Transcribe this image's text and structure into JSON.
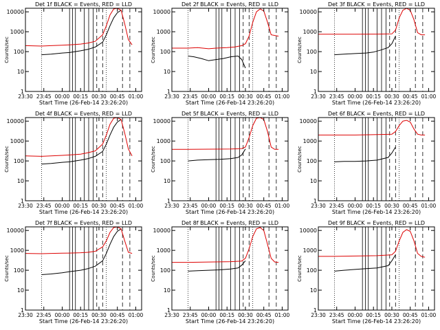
{
  "figure": {
    "start_time_label": "Start Time (26-Feb-14 23:26:20)",
    "colors": {
      "events": "#000000",
      "lld": "#dd0000",
      "axes": "#000000"
    }
  },
  "chart_data": [
    {
      "type": "line",
      "title": "Det 1f BLACK = Events, RED = LLD",
      "xlabel": "Start Time (26-Feb-14 23:26:20)",
      "ylabel": "Counts/sec",
      "x_ticks": [
        "23:30",
        "23:45",
        "00:00",
        "00:15",
        "00:30",
        "00:45",
        "01:00"
      ],
      "y_ticks": [
        "1",
        "10",
        "100",
        "1000",
        "10000"
      ],
      "yscale": "log",
      "ylim": [
        1,
        10000
      ],
      "series": [
        {
          "name": "Events",
          "color": "black",
          "x": [
            23.72,
            23.85,
            24.0,
            24.1,
            24.25,
            24.35,
            24.45,
            24.55,
            24.6,
            24.65,
            24.7,
            24.75,
            24.8
          ],
          "y": [
            70,
            75,
            85,
            90,
            110,
            130,
            170,
            300,
            700,
            2000,
            5000,
            9000,
            12000
          ]
        },
        {
          "name": "LLD",
          "color": "red",
          "x": [
            23.5,
            23.72,
            23.85,
            24.0,
            24.1,
            24.25,
            24.35,
            24.45,
            24.55,
            24.6,
            24.65,
            24.7,
            24.75,
            24.8,
            24.85,
            24.9,
            24.95
          ],
          "y": [
            200,
            190,
            200,
            210,
            220,
            240,
            270,
            330,
            700,
            2000,
            7000,
            14000,
            16000,
            12000,
            2500,
            400,
            220
          ]
        }
      ]
    },
    {
      "type": "line",
      "title": "Det 2f BLACK = Events, RED = LLD",
      "xlabel": "Start Time (26-Feb-14 23:26:20)",
      "ylabel": "Counts/sec",
      "x_ticks": [
        "23:30",
        "23:45",
        "00:00",
        "00:15",
        "00:30",
        "00:45",
        "01:00"
      ],
      "y_ticks": [
        "1",
        "10",
        "100",
        "1000",
        "10000"
      ],
      "yscale": "log",
      "ylim": [
        1,
        10000
      ],
      "series": [
        {
          "name": "Events",
          "color": "black",
          "x": [
            23.72,
            23.8,
            23.9,
            24.0,
            24.1,
            24.2,
            24.3,
            24.4,
            24.45,
            24.5
          ],
          "y": [
            60,
            55,
            45,
            35,
            40,
            45,
            55,
            60,
            40,
            15
          ]
        },
        {
          "name": "LLD",
          "color": "red",
          "x": [
            23.5,
            23.72,
            23.85,
            24.0,
            24.1,
            24.25,
            24.35,
            24.45,
            24.5,
            24.55,
            24.6,
            24.65,
            24.7,
            24.75,
            24.8,
            24.85,
            24.95
          ],
          "y": [
            150,
            150,
            160,
            140,
            150,
            160,
            170,
            200,
            250,
            600,
            3000,
            10000,
            14000,
            11000,
            3000,
            700,
            600
          ]
        }
      ]
    },
    {
      "type": "line",
      "title": "Det 3f BLACK = Events, RED = LLD",
      "xlabel": "Start Time (26-Feb-14 23:26:20)",
      "ylabel": "Counts/sec",
      "x_ticks": [
        "23:30",
        "23:45",
        "00:00",
        "00:15",
        "00:30",
        "00:45",
        "01:00"
      ],
      "y_ticks": [
        "1",
        "10",
        "100",
        "1000",
        "10000"
      ],
      "yscale": "log",
      "ylim": [
        1,
        10000
      ],
      "series": [
        {
          "name": "Events",
          "color": "black",
          "x": [
            23.72,
            23.85,
            24.0,
            24.15,
            24.25,
            24.35,
            24.45,
            24.5,
            24.55
          ],
          "y": [
            70,
            75,
            80,
            85,
            95,
            120,
            160,
            250,
            600
          ]
        },
        {
          "name": "LLD",
          "color": "red",
          "x": [
            23.5,
            23.72,
            24.0,
            24.3,
            24.5,
            24.55,
            24.6,
            24.65,
            24.7,
            24.75,
            24.8,
            24.85,
            24.9,
            24.95
          ],
          "y": [
            750,
            750,
            750,
            760,
            780,
            1200,
            5000,
            12000,
            15000,
            12000,
            4000,
            900,
            700,
            700
          ]
        }
      ]
    },
    {
      "type": "line",
      "title": "Det 4f BLACK = Events, RED = LLD",
      "xlabel": "Start Time (26-Feb-14 23:26:20)",
      "ylabel": "Counts/sec",
      "x_ticks": [
        "23:30",
        "23:45",
        "00:00",
        "00:15",
        "00:30",
        "00:45",
        "01:00"
      ],
      "y_ticks": [
        "1",
        "10",
        "100",
        "1000",
        "10000"
      ],
      "yscale": "log",
      "ylim": [
        1,
        10000
      ],
      "series": [
        {
          "name": "Events",
          "color": "black",
          "x": [
            23.72,
            23.85,
            24.0,
            24.1,
            24.25,
            24.35,
            24.45,
            24.55,
            24.6,
            24.65,
            24.7,
            24.75,
            24.8
          ],
          "y": [
            70,
            75,
            85,
            90,
            110,
            130,
            170,
            300,
            700,
            2000,
            5000,
            9000,
            12000
          ]
        },
        {
          "name": "LLD",
          "color": "red",
          "x": [
            23.5,
            23.72,
            23.85,
            24.0,
            24.1,
            24.25,
            24.35,
            24.45,
            24.55,
            24.6,
            24.65,
            24.7,
            24.75,
            24.8,
            24.85,
            24.9,
            24.95
          ],
          "y": [
            180,
            170,
            180,
            190,
            200,
            220,
            260,
            320,
            700,
            2000,
            7000,
            14000,
            16000,
            12000,
            2500,
            400,
            180
          ]
        }
      ]
    },
    {
      "type": "line",
      "title": "Det 5f BLACK = Events, RED = LLD",
      "xlabel": "Start Time (26-Feb-14 23:26:20)",
      "ylabel": "Counts/sec",
      "x_ticks": [
        "23:30",
        "23:45",
        "00:00",
        "00:15",
        "00:30",
        "00:45",
        "01:00"
      ],
      "y_ticks": [
        "1",
        "10",
        "100",
        "1000",
        "10000"
      ],
      "yscale": "log",
      "ylim": [
        1,
        10000
      ],
      "series": [
        {
          "name": "Events",
          "color": "black",
          "x": [
            23.72,
            23.85,
            24.0,
            24.15,
            24.3,
            24.4,
            24.45,
            24.5
          ],
          "y": [
            100,
            110,
            115,
            120,
            130,
            150,
            200,
            400
          ]
        },
        {
          "name": "LLD",
          "color": "red",
          "x": [
            23.5,
            23.72,
            24.0,
            24.3,
            24.45,
            24.5,
            24.55,
            24.6,
            24.65,
            24.7,
            24.75,
            24.8,
            24.85,
            24.9,
            24.95
          ],
          "y": [
            380,
            380,
            390,
            400,
            420,
            500,
            1500,
            6000,
            14000,
            16000,
            12000,
            3000,
            500,
            380,
            380
          ]
        }
      ]
    },
    {
      "type": "line",
      "title": "Det 6f BLACK = Events, RED = LLD",
      "xlabel": "Start Time (26-Feb-14 23:26:20)",
      "ylabel": "Counts/sec",
      "x_ticks": [
        "23:30",
        "23:45",
        "00:00",
        "00:15",
        "00:30",
        "00:45",
        "01:00"
      ],
      "y_ticks": [
        "1",
        "10",
        "100",
        "1000",
        "10000"
      ],
      "yscale": "log",
      "ylim": [
        1,
        10000
      ],
      "series": [
        {
          "name": "Events",
          "color": "black",
          "x": [
            23.72,
            23.85,
            24.0,
            24.15,
            24.3,
            24.45,
            24.5,
            24.55
          ],
          "y": [
            90,
            95,
            95,
            100,
            110,
            150,
            250,
            500
          ]
        },
        {
          "name": "LLD",
          "color": "red",
          "x": [
            23.5,
            23.72,
            24.0,
            24.3,
            24.5,
            24.55,
            24.6,
            24.65,
            24.7,
            24.75,
            24.8,
            24.85,
            24.9,
            24.95
          ],
          "y": [
            2000,
            2000,
            2000,
            2100,
            2200,
            3000,
            6000,
            10000,
            11000,
            9000,
            4000,
            2200,
            2000,
            2000
          ]
        }
      ]
    },
    {
      "type": "line",
      "title": "Det 7f BLACK = Events, RED = LLD",
      "xlabel": "Start Time (26-Feb-14 23:26:20)",
      "ylabel": "Counts/sec",
      "x_ticks": [
        "23:30",
        "23:45",
        "00:00",
        "00:15",
        "00:30",
        "00:45",
        "01:00"
      ],
      "y_ticks": [
        "1",
        "10",
        "100",
        "1000",
        "10000"
      ],
      "yscale": "log",
      "ylim": [
        1,
        10000
      ],
      "series": [
        {
          "name": "Events",
          "color": "black",
          "x": [
            23.72,
            23.85,
            24.0,
            24.1,
            24.25,
            24.35,
            24.45,
            24.55,
            24.6,
            24.65,
            24.7,
            24.75,
            24.8
          ],
          "y": [
            60,
            65,
            75,
            85,
            100,
            120,
            160,
            300,
            700,
            2000,
            5000,
            9000,
            12000
          ]
        },
        {
          "name": "LLD",
          "color": "red",
          "x": [
            23.5,
            23.72,
            23.85,
            24.0,
            24.1,
            24.25,
            24.35,
            24.45,
            24.55,
            24.6,
            24.65,
            24.7,
            24.75,
            24.8,
            24.85,
            24.9,
            24.95
          ],
          "y": [
            700,
            680,
            700,
            720,
            730,
            760,
            800,
            900,
            1500,
            3000,
            8000,
            14000,
            16000,
            12000,
            3000,
            800,
            700
          ]
        }
      ]
    },
    {
      "type": "line",
      "title": "Det 8f BLACK = Events, RED = LLD",
      "xlabel": "Start Time (26-Feb-14 23:26:20)",
      "ylabel": "Counts/sec",
      "x_ticks": [
        "23:30",
        "23:45",
        "00:00",
        "00:15",
        "00:30",
        "00:45",
        "01:00"
      ],
      "y_ticks": [
        "1",
        "10",
        "100",
        "1000",
        "10000"
      ],
      "yscale": "log",
      "ylim": [
        1,
        10000
      ],
      "series": [
        {
          "name": "Events",
          "color": "black",
          "x": [
            23.72,
            23.85,
            24.0,
            24.15,
            24.3,
            24.4,
            24.45,
            24.5
          ],
          "y": [
            90,
            95,
            100,
            105,
            115,
            130,
            180,
            300
          ]
        },
        {
          "name": "LLD",
          "color": "red",
          "x": [
            23.5,
            23.72,
            24.0,
            24.3,
            24.45,
            24.5,
            24.55,
            24.6,
            24.65,
            24.7,
            24.75,
            24.8,
            24.85,
            24.9,
            24.95
          ],
          "y": [
            250,
            250,
            260,
            270,
            290,
            400,
            1200,
            5000,
            12000,
            14000,
            10000,
            2000,
            400,
            260,
            250
          ]
        }
      ]
    },
    {
      "type": "line",
      "title": "Det 9f BLACK = Events, RED = LLD",
      "xlabel": "Start Time (26-Feb-14 23:26:20)",
      "ylabel": "Counts/sec",
      "x_ticks": [
        "23:30",
        "23:45",
        "00:00",
        "00:15",
        "00:30",
        "00:45",
        "01:00"
      ],
      "y_ticks": [
        "1",
        "10",
        "100",
        "1000",
        "10000"
      ],
      "yscale": "log",
      "ylim": [
        1,
        10000
      ],
      "series": [
        {
          "name": "Events",
          "color": "black",
          "x": [
            23.72,
            23.85,
            24.0,
            24.15,
            24.3,
            24.45,
            24.5,
            24.55
          ],
          "y": [
            90,
            100,
            110,
            120,
            130,
            170,
            300,
            600
          ]
        },
        {
          "name": "LLD",
          "color": "red",
          "x": [
            23.5,
            23.72,
            24.0,
            24.3,
            24.5,
            24.55,
            24.6,
            24.65,
            24.7,
            24.75,
            24.8,
            24.85,
            24.9,
            24.95
          ],
          "y": [
            500,
            500,
            520,
            540,
            600,
            900,
            3000,
            8000,
            11000,
            9000,
            3000,
            700,
            500,
            450
          ]
        }
      ]
    }
  ]
}
